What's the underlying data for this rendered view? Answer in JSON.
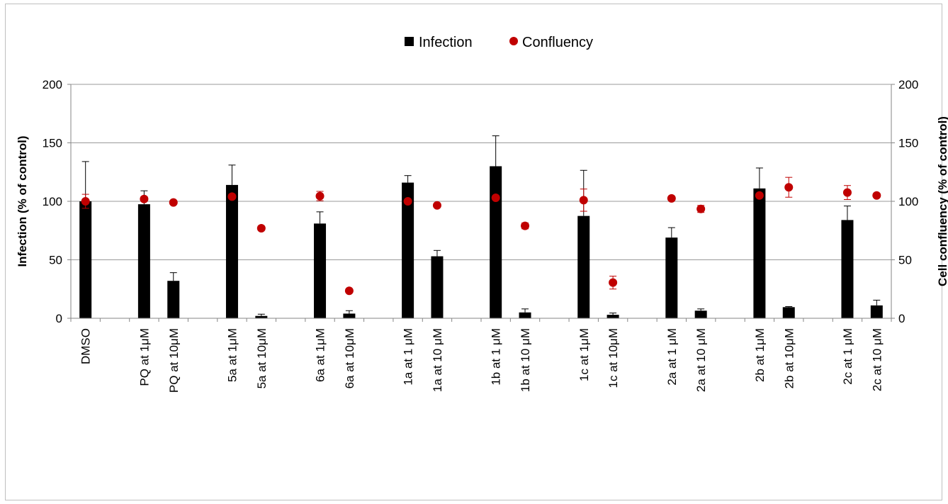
{
  "chart_data": {
    "type": "bar",
    "categories": [
      "DMSO",
      "",
      "PQ at 1μM",
      "PQ at 10μM",
      "",
      "5a at 1μM",
      "5a at 10μM",
      "",
      "6a at 1μM",
      "6a at 10μM",
      "",
      "1a at 1 μM",
      "1a at 10 μM",
      "",
      "1b at 1 μM",
      "1b at 10 μM",
      "",
      "1c at 1μM",
      "1c at 10μM",
      "",
      "2a at 1 μM",
      "2a at 10 μM",
      "",
      "2b at 1μM",
      "2b at 10μM",
      "",
      "2c at 1 μM",
      "2c at 10 μM"
    ],
    "series": [
      {
        "name": "Infection",
        "kind": "bar",
        "color": "#000000",
        "values": [
          100,
          null,
          97.5,
          32,
          null,
          114,
          2,
          null,
          81,
          4,
          null,
          116,
          53,
          null,
          130,
          5,
          null,
          87.5,
          3,
          null,
          69,
          6.5,
          null,
          111,
          9.5,
          null,
          84,
          11
        ],
        "error": [
          34,
          null,
          11.5,
          7,
          null,
          17,
          1.5,
          null,
          10,
          2.5,
          null,
          6,
          5,
          null,
          26,
          3,
          null,
          39,
          1.5,
          null,
          8.5,
          1.5,
          null,
          17.5,
          0.5,
          null,
          12,
          4.5
        ]
      },
      {
        "name": "Confluency",
        "kind": "scatter",
        "color": "#c00000",
        "values": [
          100,
          null,
          102,
          99,
          null,
          104,
          77,
          null,
          104.5,
          23.5,
          null,
          100,
          96.5,
          null,
          103,
          79,
          null,
          101,
          30.5,
          null,
          102.5,
          93.5,
          null,
          105,
          112,
          null,
          107.5,
          105
        ],
        "error": [
          6,
          null,
          2,
          1,
          null,
          2,
          1,
          null,
          4,
          1,
          null,
          1,
          1,
          null,
          1,
          2.5,
          null,
          9.5,
          5.5,
          null,
          1,
          3,
          null,
          1,
          8.5,
          null,
          6,
          1
        ]
      }
    ],
    "ylabel": "Infection (% of control)",
    "y2label": "Cell confluency (% of control)",
    "ylim": [
      0,
      200
    ],
    "y2lim": [
      0,
      200
    ],
    "yticks": [
      0,
      50,
      100,
      150,
      200
    ],
    "grid": true,
    "legend_position": "top-center",
    "legend": [
      {
        "label": "Infection",
        "marker": "square"
      },
      {
        "label": "Confluency",
        "marker": "circle"
      }
    ]
  }
}
